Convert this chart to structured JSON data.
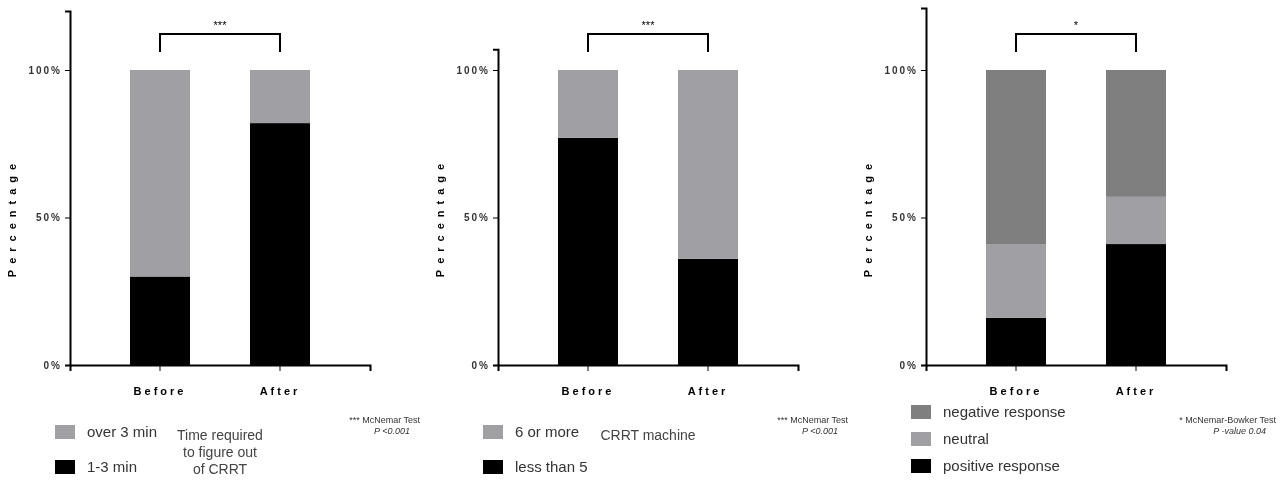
{
  "chart_data": [
    {
      "type": "bar",
      "stacked": true,
      "categories": [
        "Before",
        "After"
      ],
      "xlabel": "Time required to figure out of CRRT",
      "ylabel": "Percentage",
      "ylim": [
        0,
        120
      ],
      "yticks": [
        {
          "value": 0,
          "label": "0%"
        },
        {
          "value": 50,
          "label": "50%"
        },
        {
          "value": 100,
          "label": "100%"
        }
      ],
      "legend": "bottom",
      "grid": false,
      "series": [
        {
          "name": "1-3 min",
          "color": "#000000",
          "values": [
            30,
            82
          ]
        },
        {
          "name": "over 3 min",
          "color": "#a0a0a4",
          "values": [
            70,
            18
          ]
        }
      ],
      "annotations": [
        "***",
        "*** McNemar Test\nP <0.001"
      ]
    },
    {
      "type": "bar",
      "stacked": true,
      "categories": [
        "Before",
        "After"
      ],
      "xlabel": "CRRT machine",
      "ylabel": "Percentage",
      "ylim": [
        0,
        107
      ],
      "yticks": [
        {
          "value": 0,
          "label": "0%"
        },
        {
          "value": 50,
          "label": "50%"
        },
        {
          "value": 100,
          "label": "100%"
        }
      ],
      "legend": "bottom",
      "grid": false,
      "series": [
        {
          "name": "less than 5",
          "color": "#000000",
          "values": [
            77,
            36
          ]
        },
        {
          "name": "6 or more",
          "color": "#a0a0a4",
          "values": [
            23,
            64
          ]
        }
      ],
      "annotations": [
        "***",
        "*** McNemar Test\nP <0.001"
      ]
    },
    {
      "type": "bar",
      "stacked": true,
      "categories": [
        "Before",
        "After"
      ],
      "ylabel": "Percentage",
      "ylim": [
        0,
        121
      ],
      "yticks": [
        {
          "value": 0,
          "label": "0%"
        },
        {
          "value": 50,
          "label": "50%"
        },
        {
          "value": 100,
          "label": "100%"
        }
      ],
      "legend": "bottom",
      "grid": false,
      "series": [
        {
          "name": "positive response",
          "color": "#000000",
          "values": [
            16,
            41
          ]
        },
        {
          "name": "neutral",
          "color": "#a0a0a4",
          "values": [
            25,
            16
          ]
        },
        {
          "name": "negative response",
          "color": "#7f7f7f",
          "values": [
            59,
            43
          ]
        }
      ],
      "annotations": [
        "*",
        "* McNemar-Bowker Test\nP -value 0.04"
      ]
    }
  ]
}
